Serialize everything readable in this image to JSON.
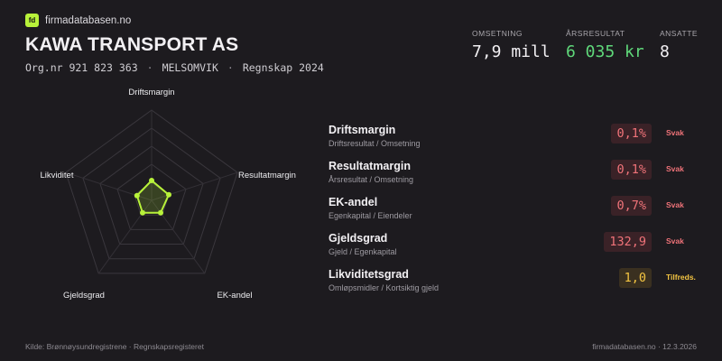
{
  "brand": {
    "logo": "fd",
    "name": "firmadatabasen.no"
  },
  "company": {
    "name": "KAWA TRANSPORT AS",
    "orgnr": "Org.nr 921 823 363",
    "location": "MELSOMVIK",
    "period": "Regnskap 2024",
    "separator": "·"
  },
  "stats": [
    {
      "label": "OMSETNING",
      "value": "7,9 mill"
    },
    {
      "label": "ÅRSRESULTAT",
      "value": "6 035 kr"
    },
    {
      "label": "ANSATTE",
      "value": "8"
    }
  ],
  "colors": {
    "accent": "#b8f23a",
    "positive": "#5fd87a",
    "weak": "#f07379",
    "ok": "#f4c542"
  },
  "radar": {
    "axes": [
      "Driftsmargin",
      "Resultatmargin",
      "EK-andel",
      "Gjeldsgrad",
      "Likviditet"
    ],
    "values": [
      0.22,
      0.2,
      0.17,
      0.17,
      0.17
    ]
  },
  "metrics": [
    {
      "name": "Driftsmargin",
      "desc": "Driftsresultat / Omsetning",
      "value": "0,1%",
      "status": "Svak",
      "level": "svak"
    },
    {
      "name": "Resultatmargin",
      "desc": "Årsresultat / Omsetning",
      "value": "0,1%",
      "status": "Svak",
      "level": "svak"
    },
    {
      "name": "EK-andel",
      "desc": "Egenkapital / Eiendeler",
      "value": "0,7%",
      "status": "Svak",
      "level": "svak"
    },
    {
      "name": "Gjeldsgrad",
      "desc": "Gjeld / Egenkapital",
      "value": "132,9",
      "status": "Svak",
      "level": "svak"
    },
    {
      "name": "Likviditetsgrad",
      "desc": "Omløpsmidler / Kortsiktig gjeld",
      "value": "1,0",
      "status": "Tilfreds.",
      "level": "tilf"
    }
  ],
  "footer": {
    "source": "Kilde: Brønnøysundregistrene · Regnskapsregisteret",
    "site": "firmadatabasen.no · 12.3.2026"
  }
}
